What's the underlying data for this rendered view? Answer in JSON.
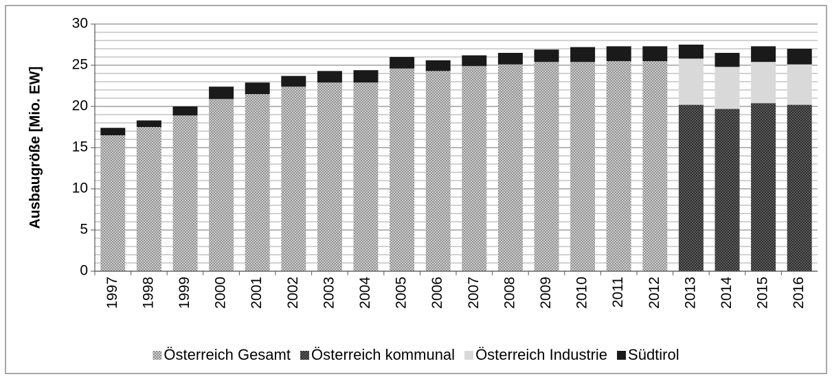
{
  "chart_data": {
    "type": "stacked_bar",
    "y_label": "Ausbaugröße  [Mio. EW]",
    "categories": [
      "1997",
      "1998",
      "1999",
      "2000",
      "2001",
      "2002",
      "2003",
      "2004",
      "2005",
      "2006",
      "2007",
      "2008",
      "2009",
      "2010",
      "2011",
      "2012",
      "2013",
      "2014",
      "2015",
      "2016"
    ],
    "series": [
      {
        "name": "Österreich Gesamt",
        "color": "#9a9a9a",
        "pattern": "crosshatch",
        "values": [
          16.5,
          17.5,
          18.9,
          20.9,
          21.5,
          22.4,
          22.9,
          22.9,
          24.6,
          24.3,
          24.9,
          25.1,
          25.4,
          25.4,
          25.5,
          25.5,
          null,
          null,
          null,
          null
        ]
      },
      {
        "name": "Österreich kommunal",
        "color": "#1e1e1e",
        "pattern": "crosshatch",
        "values": [
          null,
          null,
          null,
          null,
          null,
          null,
          null,
          null,
          null,
          null,
          null,
          null,
          null,
          null,
          null,
          null,
          20.2,
          19.7,
          20.4,
          20.2
        ]
      },
      {
        "name": "Österreich Industrie",
        "color": "#d9d9d9",
        "values": [
          null,
          null,
          null,
          null,
          null,
          null,
          null,
          null,
          null,
          null,
          null,
          null,
          null,
          null,
          null,
          null,
          5.6,
          5.1,
          5.0,
          4.9
        ]
      },
      {
        "name": "Südtirol",
        "color": "#1a1a1a",
        "values": [
          0.9,
          0.8,
          1.1,
          1.5,
          1.4,
          1.3,
          1.4,
          1.5,
          1.4,
          1.3,
          1.3,
          1.4,
          1.5,
          1.8,
          1.8,
          1.8,
          1.7,
          1.7,
          1.9,
          1.9
        ]
      }
    ],
    "ylim": [
      0,
      30
    ],
    "yticks": [
      0,
      5,
      10,
      15,
      20,
      25,
      30
    ],
    "grid": true,
    "minor_grid": true,
    "legend": "bottom"
  }
}
